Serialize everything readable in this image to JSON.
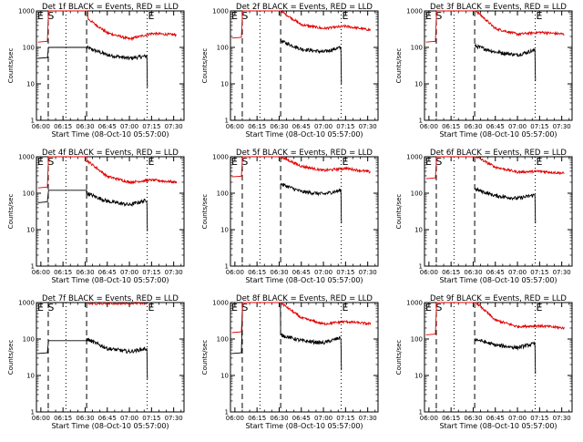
{
  "colors": {
    "events": "#000000",
    "lld": "#e00000",
    "background": "#ffffff"
  },
  "chart_data": [
    {
      "type": "line",
      "title": "Det 1f BLACK = Events, RED = LLD",
      "xlabel": "Start Time (08-Oct-10 05:57:00)",
      "ylabel": "Counts/sec",
      "x_ticks": [
        "06:00",
        "06:15",
        "06:30",
        "06:45",
        "07:00",
        "07:15",
        "07:30"
      ],
      "y_ticks": [
        "1",
        "10",
        "100",
        "1000"
      ],
      "yscale": "log",
      "ylim": [
        1,
        1000
      ],
      "xlim": [
        "05:57",
        "07:37"
      ],
      "markers": [
        {
          "label": "E",
          "time": "05:57"
        },
        {
          "label": "S",
          "time": "06:04"
        },
        {
          "label": "E",
          "time": "07:12"
        }
      ],
      "dashed_lines": [
        "06:05",
        "06:31"
      ],
      "dotted_lines": [
        "06:17",
        "07:12"
      ],
      "series": [
        {
          "name": "Events",
          "color": "#000000",
          "shape": "sat",
          "lo": 50,
          "hi": 100,
          "band": [
            [
              "06:31",
              100
            ],
            [
              "06:45",
              62
            ],
            [
              "07:00",
              50
            ],
            [
              "07:12",
              58
            ]
          ],
          "end_drop": 8
        },
        {
          "name": "LLD",
          "color": "#e00000",
          "shape": "sat",
          "lo": 140,
          "hi": 1000,
          "band": [
            [
              "06:32",
              600
            ],
            [
              "06:45",
              250
            ],
            [
              "07:00",
              170
            ],
            [
              "07:15",
              240
            ],
            [
              "07:32",
              220
            ]
          ]
        }
      ]
    },
    {
      "type": "line",
      "title": "Det 2f BLACK = Events, RED = LLD",
      "xlabel": "Start Time (08-Oct-10 05:57:00)",
      "ylabel": "Counts/sec",
      "x_ticks": [
        "06:00",
        "06:15",
        "06:30",
        "06:45",
        "07:00",
        "07:15",
        "07:30"
      ],
      "y_ticks": [
        "1",
        "10",
        "100",
        "1000"
      ],
      "yscale": "log",
      "ylim": [
        1,
        1000
      ],
      "xlim": [
        "05:57",
        "07:37"
      ],
      "markers": [
        {
          "label": "E",
          "time": "05:57"
        },
        {
          "label": "S",
          "time": "06:04"
        },
        {
          "label": "E",
          "time": "07:12"
        }
      ],
      "dashed_lines": [
        "06:05",
        "06:31"
      ],
      "dotted_lines": [
        "06:17",
        "07:12"
      ],
      "series": [
        {
          "name": "Events",
          "color": "#000000",
          "shape": "normal",
          "band": [
            [
              "06:31",
              150
            ],
            [
              "06:45",
              90
            ],
            [
              "07:00",
              75
            ],
            [
              "07:12",
              100
            ]
          ],
          "end_drop": 10
        },
        {
          "name": "LLD",
          "color": "#e00000",
          "shape": "sat",
          "lo": 180,
          "hi": 1000,
          "band": [
            [
              "06:31",
              1000
            ],
            [
              "06:45",
              420
            ],
            [
              "07:00",
              330
            ],
            [
              "07:15",
              380
            ],
            [
              "07:32",
              300
            ]
          ]
        }
      ]
    },
    {
      "type": "line",
      "title": "Det 3f BLACK = Events, RED = LLD",
      "xlabel": "Start Time (08-Oct-10 05:57:00)",
      "ylabel": "Counts/sec",
      "x_ticks": [
        "06:00",
        "06:15",
        "06:30",
        "06:45",
        "07:00",
        "07:15",
        "07:30"
      ],
      "y_ticks": [
        "1",
        "10",
        "100",
        "1000"
      ],
      "yscale": "log",
      "ylim": [
        1,
        1000
      ],
      "xlim": [
        "05:57",
        "07:37"
      ],
      "markers": [
        {
          "label": "E",
          "time": "05:57"
        },
        {
          "label": "S",
          "time": "06:04"
        },
        {
          "label": "E",
          "time": "07:12"
        }
      ],
      "dashed_lines": [
        "06:05",
        "06:31"
      ],
      "dotted_lines": [
        "06:17",
        "07:12"
      ],
      "series": [
        {
          "name": "Events",
          "color": "#000000",
          "shape": "normal",
          "band": [
            [
              "06:31",
              110
            ],
            [
              "06:45",
              75
            ],
            [
              "07:00",
              62
            ],
            [
              "07:12",
              85
            ]
          ],
          "end_drop": 12
        },
        {
          "name": "LLD",
          "color": "#e00000",
          "shape": "sat",
          "lo": 140,
          "hi": 1000,
          "band": [
            [
              "06:32",
              1000
            ],
            [
              "06:45",
              330
            ],
            [
              "07:00",
              230
            ],
            [
              "07:15",
              260
            ],
            [
              "07:32",
              230
            ]
          ]
        }
      ]
    },
    {
      "type": "line",
      "title": "Det 4f BLACK = Events, RED = LLD",
      "xlabel": "Start Time (08-Oct-10 05:57:00)",
      "ylabel": "Counts/sec",
      "x_ticks": [
        "06:00",
        "06:15",
        "06:30",
        "06:45",
        "07:00",
        "07:15",
        "07:30"
      ],
      "y_ticks": [
        "1",
        "10",
        "100",
        "1000"
      ],
      "yscale": "log",
      "ylim": [
        1,
        1000
      ],
      "xlim": [
        "05:57",
        "07:37"
      ],
      "markers": [
        {
          "label": "E",
          "time": "05:57"
        },
        {
          "label": "S",
          "time": "06:04"
        },
        {
          "label": "E",
          "time": "07:12"
        }
      ],
      "dashed_lines": [
        "06:05",
        "06:31"
      ],
      "dotted_lines": [
        "06:17",
        "07:12"
      ],
      "series": [
        {
          "name": "Events",
          "color": "#000000",
          "shape": "sat",
          "lo": 55,
          "hi": 120,
          "band": [
            [
              "06:31",
              100
            ],
            [
              "06:45",
              60
            ],
            [
              "07:00",
              48
            ],
            [
              "07:12",
              65
            ]
          ],
          "end_drop": 9
        },
        {
          "name": "LLD",
          "color": "#e00000",
          "shape": "sat",
          "lo": 140,
          "hi": 1000,
          "band": [
            [
              "06:31",
              800
            ],
            [
              "06:45",
              290
            ],
            [
              "07:00",
              200
            ],
            [
              "07:15",
              230
            ],
            [
              "07:32",
              200
            ]
          ]
        }
      ]
    },
    {
      "type": "line",
      "title": "Det 5f BLACK = Events, RED = LLD",
      "xlabel": "Start Time (08-Oct-10 05:57:00)",
      "ylabel": "Counts/sec",
      "x_ticks": [
        "06:00",
        "06:15",
        "06:30",
        "06:45",
        "07:00",
        "07:15",
        "07:30"
      ],
      "y_ticks": [
        "1",
        "10",
        "100",
        "1000"
      ],
      "yscale": "log",
      "ylim": [
        1,
        1000
      ],
      "xlim": [
        "05:57",
        "07:37"
      ],
      "markers": [
        {
          "label": "E",
          "time": "05:57"
        },
        {
          "label": "S",
          "time": "06:04"
        },
        {
          "label": "E",
          "time": "07:12"
        }
      ],
      "dashed_lines": [
        "06:05",
        "06:31"
      ],
      "dotted_lines": [
        "06:17",
        "07:12"
      ],
      "series": [
        {
          "name": "Events",
          "color": "#000000",
          "shape": "normal",
          "band": [
            [
              "06:31",
              180
            ],
            [
              "06:45",
              110
            ],
            [
              "07:00",
              95
            ],
            [
              "07:12",
              120
            ]
          ],
          "end_drop": 15
        },
        {
          "name": "LLD",
          "color": "#e00000",
          "shape": "sat",
          "lo": 280,
          "hi": 1000,
          "band": [
            [
              "06:31",
              1000
            ],
            [
              "06:45",
              550
            ],
            [
              "07:00",
              420
            ],
            [
              "07:15",
              480
            ],
            [
              "07:32",
              380
            ]
          ]
        }
      ]
    },
    {
      "type": "line",
      "title": "Det 6f BLACK = Events, RED = LLD",
      "xlabel": "Start Time (08-Oct-10 05:57:00)",
      "ylabel": "Counts/sec",
      "x_ticks": [
        "06:00",
        "06:15",
        "06:30",
        "06:45",
        "07:00",
        "07:15",
        "07:30"
      ],
      "y_ticks": [
        "1",
        "10",
        "100",
        "1000"
      ],
      "yscale": "log",
      "ylim": [
        1,
        1000
      ],
      "xlim": [
        "05:57",
        "07:37"
      ],
      "markers": [
        {
          "label": "E",
          "time": "05:57"
        },
        {
          "label": "S",
          "time": "06:04"
        },
        {
          "label": "E",
          "time": "07:12"
        }
      ],
      "dashed_lines": [
        "06:05",
        "06:31"
      ],
      "dotted_lines": [
        "06:17",
        "07:12"
      ],
      "series": [
        {
          "name": "Events",
          "color": "#000000",
          "shape": "normal",
          "band": [
            [
              "06:31",
              130
            ],
            [
              "06:45",
              85
            ],
            [
              "07:00",
              72
            ],
            [
              "07:12",
              90
            ]
          ],
          "end_drop": 15
        },
        {
          "name": "LLD",
          "color": "#e00000",
          "shape": "sat",
          "lo": 250,
          "hi": 1000,
          "band": [
            [
              "06:32",
              1000
            ],
            [
              "06:45",
              520
            ],
            [
              "07:00",
              380
            ],
            [
              "07:15",
              400
            ],
            [
              "07:32",
              350
            ]
          ]
        }
      ]
    },
    {
      "type": "line",
      "title": "Det 7f BLACK = Events, RED = LLD",
      "xlabel": "Start Time (08-Oct-10 05:57:00)",
      "ylabel": "Counts/sec",
      "x_ticks": [
        "06:00",
        "06:15",
        "06:30",
        "06:45",
        "07:00",
        "07:15",
        "07:30"
      ],
      "y_ticks": [
        "1",
        "10",
        "100",
        "1000"
      ],
      "yscale": "log",
      "ylim": [
        1,
        1000
      ],
      "xlim": [
        "05:57",
        "07:37"
      ],
      "markers": [
        {
          "label": "E",
          "time": "05:57"
        },
        {
          "label": "S",
          "time": "06:04"
        },
        {
          "label": "E",
          "time": "07:12"
        }
      ],
      "dashed_lines": [
        "06:05",
        "06:31"
      ],
      "dotted_lines": [
        "06:17",
        "07:12"
      ],
      "series": [
        {
          "name": "Events",
          "color": "#000000",
          "shape": "sat",
          "lo": 40,
          "hi": 90,
          "band": [
            [
              "06:31",
              100
            ],
            [
              "06:45",
              55
            ],
            [
              "07:00",
              45
            ],
            [
              "07:12",
              55
            ]
          ],
          "end_drop": 8
        },
        {
          "name": "LLD",
          "color": "#e00000",
          "shape": "top",
          "band": [
            [
              "06:32",
              1000
            ],
            [
              "07:12",
              1000
            ]
          ]
        }
      ]
    },
    {
      "type": "line",
      "title": "Det 8f BLACK = Events, RED = LLD",
      "xlabel": "Start Time (08-Oct-10 05:57:00)",
      "ylabel": "Counts/sec",
      "x_ticks": [
        "06:00",
        "06:15",
        "06:30",
        "06:45",
        "07:00",
        "07:15",
        "07:30"
      ],
      "y_ticks": [
        "1",
        "10",
        "100",
        "1000"
      ],
      "yscale": "log",
      "ylim": [
        1,
        1000
      ],
      "xlim": [
        "05:57",
        "07:37"
      ],
      "markers": [
        {
          "label": "E",
          "time": "05:57"
        },
        {
          "label": "S",
          "time": "06:04"
        },
        {
          "label": "E",
          "time": "07:12"
        }
      ],
      "dashed_lines": [
        "06:05",
        "06:31"
      ],
      "dotted_lines": [
        "06:17",
        "07:12"
      ],
      "series": [
        {
          "name": "Events",
          "color": "#000000",
          "shape": "sat",
          "lo": 40,
          "hi": 1000,
          "band": [
            [
              "06:31",
              130
            ],
            [
              "06:45",
              90
            ],
            [
              "07:00",
              78
            ],
            [
              "07:12",
              110
            ]
          ],
          "end_drop": 14
        },
        {
          "name": "LLD",
          "color": "#e00000",
          "shape": "sat",
          "lo": 150,
          "hi": 1000,
          "band": [
            [
              "06:31",
              1000
            ],
            [
              "06:45",
              380
            ],
            [
              "07:00",
              260
            ],
            [
              "07:15",
              300
            ],
            [
              "07:32",
              260
            ]
          ]
        }
      ]
    },
    {
      "type": "line",
      "title": "Det 9f BLACK = Events, RED = LLD",
      "xlabel": "Start Time (08-Oct-10 05:57:00)",
      "ylabel": "Counts/sec",
      "x_ticks": [
        "06:00",
        "06:15",
        "06:30",
        "06:45",
        "07:00",
        "07:15",
        "07:30"
      ],
      "y_ticks": [
        "1",
        "10",
        "100",
        "1000"
      ],
      "yscale": "log",
      "ylim": [
        1,
        1000
      ],
      "xlim": [
        "05:57",
        "07:37"
      ],
      "markers": [
        {
          "label": "E",
          "time": "05:57"
        },
        {
          "label": "S",
          "time": "06:04"
        },
        {
          "label": "E",
          "time": "07:12"
        }
      ],
      "dashed_lines": [
        "06:05",
        "06:31"
      ],
      "dotted_lines": [
        "06:17",
        "07:12"
      ],
      "series": [
        {
          "name": "Events",
          "color": "#000000",
          "shape": "normal",
          "band": [
            [
              "06:31",
              100
            ],
            [
              "06:45",
              68
            ],
            [
              "07:00",
              58
            ],
            [
              "07:12",
              75
            ]
          ],
          "end_drop": 11
        },
        {
          "name": "LLD",
          "color": "#e00000",
          "shape": "sat",
          "lo": 130,
          "hi": 1000,
          "band": [
            [
              "06:32",
              1000
            ],
            [
              "06:45",
              330
            ],
            [
              "07:00",
              220
            ],
            [
              "07:15",
              230
            ],
            [
              "07:32",
              200
            ]
          ]
        }
      ]
    }
  ]
}
